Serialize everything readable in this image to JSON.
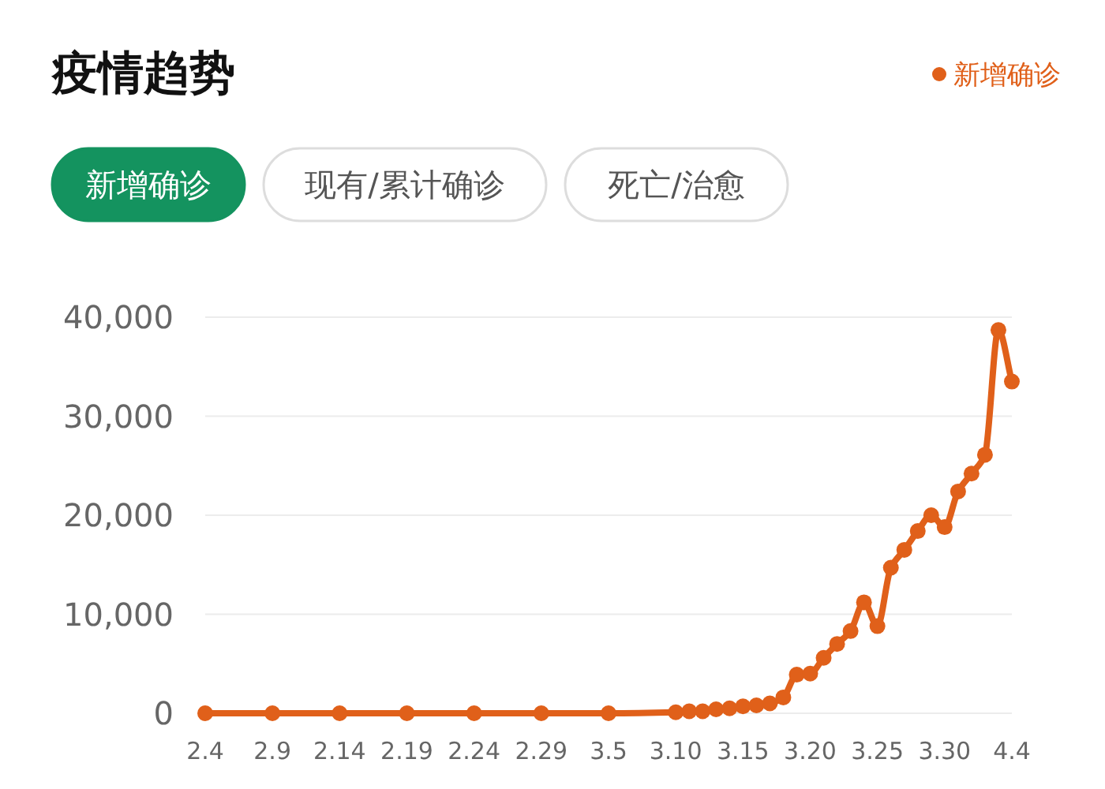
{
  "chart_data": {
    "type": "line",
    "title": "疫情趋势",
    "annotations": [
      "新增确诊",
      "现有/累计确诊",
      "死亡/治愈"
    ],
    "x": [
      "--02-04",
      "--02-09",
      "--02-14",
      "--02-19",
      "--02-24",
      "--02-29",
      "--03-05",
      "--03-10",
      "--03-11",
      "--03-12",
      "--03-13",
      "--03-14",
      "--03-15",
      "--03-16",
      "--03-17",
      "--03-18",
      "--03-19",
      "--03-20",
      "--03-21",
      "--03-22",
      "--03-23",
      "--03-24",
      "--03-25",
      "--03-26",
      "--03-27",
      "--03-28",
      "--03-29",
      "--03-30",
      "--03-31",
      "--04-01",
      "--04-02",
      "--04-03",
      "--04-04"
    ],
    "series": [
      {
        "name": "新增确诊",
        "color": "#e0601a",
        "values": [
          0,
          0,
          0,
          0,
          0,
          0,
          0,
          100,
          200,
          200,
          400,
          500,
          700,
          800,
          1000,
          1600,
          3900,
          4000,
          5600,
          7000,
          8300,
          11200,
          8800,
          14700,
          16500,
          18400,
          20000,
          18800,
          22400,
          24200,
          26100,
          38700,
          33500
        ]
      }
    ],
    "ylim": [
      0,
      40000
    ],
    "yticks": [
      0,
      {
        "value": 10000,
        "label": "10,000"
      },
      {
        "value": 20000,
        "label": "20,000"
      },
      {
        "value": 30000,
        "label": "30,000"
      },
      {
        "value": 40000,
        "label": "40,000"
      }
    ],
    "xlim": [
      "--02-04",
      "--04-04"
    ],
    "xticks": [
      {
        "value": "--02-04",
        "label": "2.4"
      },
      {
        "value": "--02-09",
        "label": "2.9"
      },
      {
        "value": "--02-14",
        "label": "2.14"
      },
      {
        "value": "--02-19",
        "label": "2.19"
      },
      {
        "value": "--02-24",
        "label": "2.24"
      },
      {
        "value": "--02-29",
        "label": "2.29"
      },
      {
        "value": "--03-05",
        "label": "3.5"
      },
      {
        "value": "--03-10",
        "label": "3.10"
      },
      {
        "value": "--03-15",
        "label": "3.15"
      },
      {
        "value": "--03-20",
        "label": "3.20"
      },
      {
        "value": "--03-25",
        "label": "3.25"
      },
      {
        "value": "--03-30",
        "label": "3.30"
      },
      {
        "value": "--04-04",
        "label": "4.4"
      }
    ],
    "grid": "y",
    "legend": "top right",
    "marker": "circle",
    "line_style": "solid"
  }
}
